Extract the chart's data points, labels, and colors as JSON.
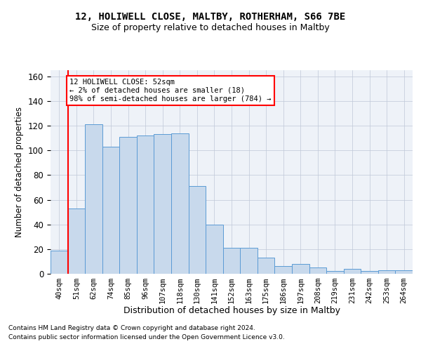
{
  "title1": "12, HOLIWELL CLOSE, MALTBY, ROTHERHAM, S66 7BE",
  "title2": "Size of property relative to detached houses in Maltby",
  "xlabel": "Distribution of detached houses by size in Maltby",
  "ylabel": "Number of detached properties",
  "footnote1": "Contains HM Land Registry data © Crown copyright and database right 2024.",
  "footnote2": "Contains public sector information licensed under the Open Government Licence v3.0.",
  "bar_labels": [
    "40sqm",
    "51sqm",
    "62sqm",
    "74sqm",
    "85sqm",
    "96sqm",
    "107sqm",
    "118sqm",
    "130sqm",
    "141sqm",
    "152sqm",
    "163sqm",
    "175sqm",
    "186sqm",
    "197sqm",
    "208sqm",
    "219sqm",
    "231sqm",
    "242sqm",
    "253sqm",
    "264sqm"
  ],
  "bar_values": [
    19,
    53,
    121,
    103,
    111,
    112,
    113,
    114,
    71,
    40,
    21,
    21,
    13,
    6,
    8,
    5,
    2,
    4,
    2,
    3,
    3
  ],
  "bar_color": "#c8d9ec",
  "bar_edge_color": "#5b9bd5",
  "property_line_label": "12 HOLIWELL CLOSE: 52sqm",
  "annotation_line1": "← 2% of detached houses are smaller (18)",
  "annotation_line2": "98% of semi-detached houses are larger (784) →",
  "annotation_box_color": "white",
  "annotation_box_edge": "red",
  "vline_color": "red",
  "ylim": [
    0,
    165
  ],
  "yticks": [
    0,
    20,
    40,
    60,
    80,
    100,
    120,
    140,
    160
  ],
  "grid_color": "#c0c8d8",
  "background_color": "#eef2f8"
}
